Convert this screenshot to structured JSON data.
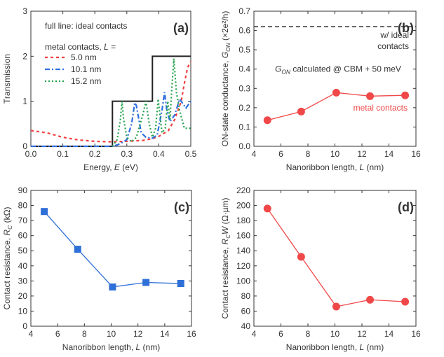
{
  "chart_data": [
    {
      "panel": "a",
      "panel_label": "(a)",
      "type": "line",
      "xlabel": "Energy, E  (eV)",
      "ylabel": "Transmission",
      "xlim": [
        0,
        0.5
      ],
      "ylim": [
        0,
        3
      ],
      "xticks": [
        "0.0",
        "0.1",
        "0.2",
        "0.3",
        "0.4",
        "0.5"
      ],
      "yticks": [
        "0",
        "1",
        "2",
        "3"
      ],
      "annotation": "full line: ideal contacts",
      "legend_title": "metal contacts, L =",
      "series": [
        {
          "name": "ideal",
          "color": "#222222",
          "style": "solid",
          "x": [
            0,
            0.255,
            0.255,
            0.38,
            0.38,
            0.5
          ],
          "y": [
            0,
            0,
            1,
            1,
            2,
            2
          ]
        },
        {
          "name": "5.0 nm",
          "color": "#f04040",
          "style": "dash",
          "x": [
            0,
            0.05,
            0.1,
            0.15,
            0.2,
            0.25,
            0.3,
            0.35,
            0.38,
            0.4,
            0.43,
            0.45,
            0.47,
            0.48,
            0.49,
            0.5
          ],
          "y": [
            0.35,
            0.3,
            0.2,
            0.14,
            0.11,
            0.1,
            0.11,
            0.13,
            0.17,
            0.22,
            0.35,
            0.6,
            1.0,
            1.4,
            1.75,
            1.88
          ]
        },
        {
          "name": "10.1 nm",
          "color": "#2f6fe0",
          "style": "dashdot",
          "x": [
            0,
            0.255,
            0.27,
            0.29,
            0.3,
            0.315,
            0.325,
            0.33,
            0.345,
            0.36,
            0.38,
            0.395,
            0.41,
            0.418,
            0.425,
            0.435,
            0.45,
            0.465,
            0.47,
            0.485,
            0.5
          ],
          "y": [
            0,
            0,
            0.03,
            0.1,
            0.15,
            0.5,
            0.97,
            0.9,
            0.3,
            0.2,
            0.18,
            0.25,
            0.8,
            1.2,
            0.8,
            0.55,
            0.7,
            1.05,
            1.0,
            0.85,
            1.0
          ]
        },
        {
          "name": "15.2 nm",
          "color": "#22a04a",
          "style": "dot",
          "x": [
            0.255,
            0.27,
            0.28,
            0.285,
            0.29,
            0.3,
            0.315,
            0.33,
            0.35,
            0.36,
            0.37,
            0.38,
            0.39,
            0.398,
            0.405,
            0.41,
            0.42,
            0.428,
            0.435,
            0.44,
            0.447,
            0.455,
            0.465,
            0.48,
            0.5
          ],
          "y": [
            0,
            0.15,
            0.6,
            1.0,
            0.6,
            0.2,
            0.1,
            0.2,
            0.7,
            1.0,
            0.5,
            0.2,
            0.4,
            1.05,
            0.6,
            0.3,
            0.4,
            1.0,
            0.6,
            1.2,
            1.95,
            1.2,
            0.8,
            0.4,
            0.4
          ]
        }
      ]
    },
    {
      "panel": "b",
      "panel_label": "(b)",
      "type": "line",
      "xlabel": "Nanoribbon length, L  (nm)",
      "ylabel": "ON-state conductance, G_ON (×2e²/h)",
      "xlim": [
        4,
        16
      ],
      "ylim": [
        0,
        0.7
      ],
      "xticks": [
        "4",
        "6",
        "8",
        "10",
        "12",
        "14",
        "16"
      ],
      "yticks": [
        "0.0",
        "0.1",
        "0.2",
        "0.3",
        "0.4",
        "0.5",
        "0.6",
        "0.7"
      ],
      "x": [
        5,
        7.5,
        10.1,
        12.6,
        15.2
      ],
      "y": [
        0.135,
        0.18,
        0.278,
        0.26,
        0.264
      ],
      "color": "#f04848",
      "series_label": "metal contacts",
      "ideal_value": 0.62,
      "ideal_label_1": "w/ ideal",
      "ideal_label_2": "contacts",
      "annotation": "G_ON calculated @ CBM + 50 meV"
    },
    {
      "panel": "c",
      "panel_label": "(c)",
      "type": "line",
      "xlabel": "Nanoribbon length, L  (nm)",
      "ylabel": "Contact resistance, R_C (kΩ)",
      "xlim": [
        4,
        16
      ],
      "ylim": [
        0,
        90
      ],
      "xticks": [
        "4",
        "6",
        "8",
        "10",
        "12",
        "14",
        "16"
      ],
      "yticks": [
        "0",
        "10",
        "20",
        "30",
        "40",
        "50",
        "60",
        "70",
        "80",
        "90"
      ],
      "x": [
        5,
        7.5,
        10.1,
        12.6,
        15.2
      ],
      "y": [
        76,
        51,
        26,
        29,
        28.3
      ],
      "color": "#2f6fd8",
      "marker": "square"
    },
    {
      "panel": "d",
      "panel_label": "(d)",
      "type": "line",
      "xlabel": "Nanoribbon length, L  (nm)",
      "ylabel": "Contact resistance, R_C W (Ω·µm)",
      "xlim": [
        4,
        16
      ],
      "ylim": [
        40,
        220
      ],
      "xticks": [
        "4",
        "6",
        "8",
        "10",
        "12",
        "14",
        "16"
      ],
      "yticks": [
        "40",
        "60",
        "80",
        "100",
        "120",
        "140",
        "160",
        "180",
        "200",
        "220"
      ],
      "x": [
        5,
        7.5,
        10.1,
        12.6,
        15.2
      ],
      "y": [
        196,
        132,
        66,
        75,
        72.5
      ],
      "color": "#f04848",
      "marker": "circle"
    }
  ]
}
